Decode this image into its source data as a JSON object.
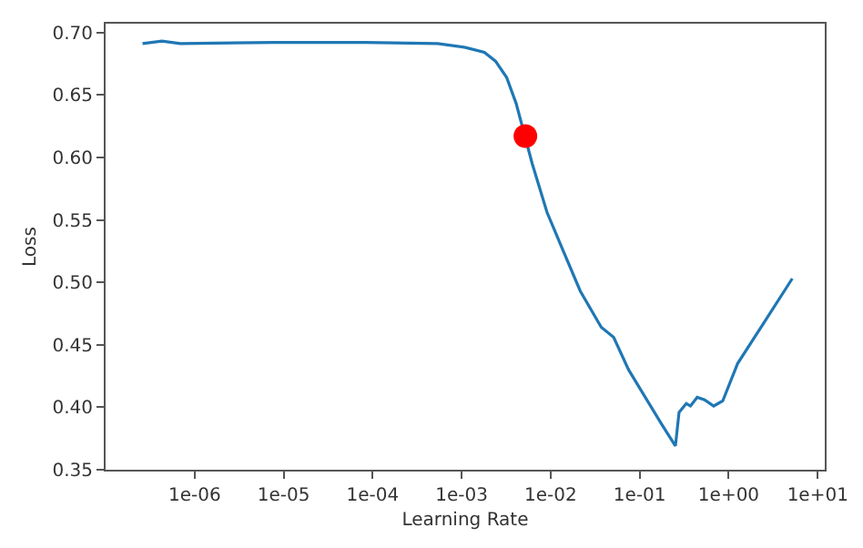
{
  "chart_data": {
    "type": "line",
    "xlabel": "Learning Rate",
    "ylabel": "Loss",
    "log": "x",
    "grid": false,
    "xlim": [
      1e-07,
      12
    ],
    "ylim": [
      0.35,
      0.707
    ],
    "xticks": [
      {
        "value": 1e-06,
        "label": "1e-06"
      },
      {
        "value": 1e-05,
        "label": "1e-05"
      },
      {
        "value": 0.0001,
        "label": "1e-04"
      },
      {
        "value": 0.001,
        "label": "1e-03"
      },
      {
        "value": 0.01,
        "label": "1e-02"
      },
      {
        "value": 0.1,
        "label": "1e-01"
      },
      {
        "value": 1,
        "label": "1e+00"
      },
      {
        "value": 10,
        "label": "1e+01"
      }
    ],
    "yticks": [
      {
        "value": 0.35,
        "label": "0.35"
      },
      {
        "value": 0.4,
        "label": "0.40"
      },
      {
        "value": 0.45,
        "label": "0.45"
      },
      {
        "value": 0.5,
        "label": "0.50"
      },
      {
        "value": 0.55,
        "label": "0.55"
      },
      {
        "value": 0.6,
        "label": "0.60"
      },
      {
        "value": 0.65,
        "label": "0.65"
      },
      {
        "value": 0.7,
        "label": "0.70"
      }
    ],
    "series": [
      {
        "type": "line",
        "marker": "none",
        "color": "#1f77b4",
        "x": [
          2.6e-07,
          4.3e-07,
          6.9e-07,
          7.9e-06,
          8.3e-05,
          0.00054,
          0.0011,
          0.0018,
          0.0024,
          0.0032,
          0.0041,
          0.0062,
          0.0091,
          0.0135,
          0.0215,
          0.037,
          0.051,
          0.075,
          0.111,
          0.178,
          0.252,
          0.277,
          0.334,
          0.372,
          0.443,
          0.535,
          0.678,
          0.857,
          1.26,
          2.56,
          5.18
        ],
        "values": [
          0.691,
          0.693,
          0.691,
          0.692,
          0.692,
          0.691,
          0.688,
          0.684,
          0.677,
          0.664,
          0.643,
          0.595,
          0.556,
          0.527,
          0.493,
          0.464,
          0.456,
          0.43,
          0.41,
          0.386,
          0.369,
          0.396,
          0.403,
          0.401,
          0.408,
          0.406,
          0.401,
          0.405,
          0.435,
          0.469,
          0.503
        ]
      },
      {
        "type": "scatter",
        "marker": "circle",
        "color": "#ff0000",
        "x": [
          0.0052
        ],
        "values": [
          0.617
        ]
      }
    ]
  }
}
